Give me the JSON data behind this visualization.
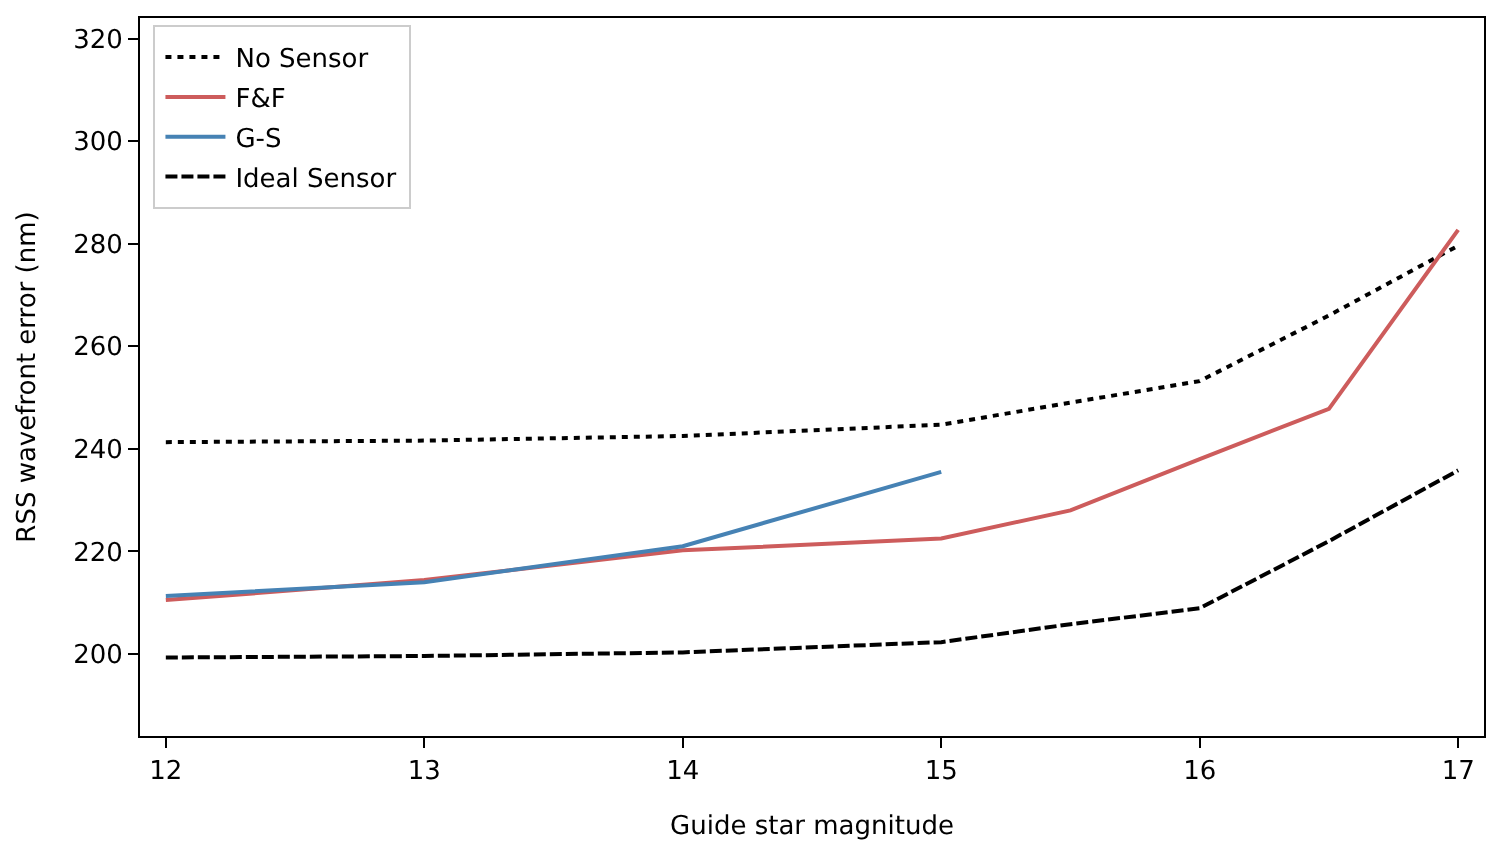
{
  "chart_data": {
    "type": "line",
    "xlabel": "Guide star magnitude",
    "ylabel": "RSS wavefront error (nm)",
    "xlim": [
      11.9,
      17.1
    ],
    "ylim": [
      184,
      324
    ],
    "xticks": [
      12,
      13,
      14,
      15,
      16,
      17
    ],
    "yticks": [
      200,
      220,
      240,
      260,
      280,
      300,
      320
    ],
    "legend": "top left",
    "marker": "none",
    "series": [
      {
        "name": "No Sensor",
        "color": "#000000",
        "line_style": "dotted",
        "x": [
          12,
          13,
          14,
          15,
          15.5,
          16,
          16.5,
          17
        ],
        "values": [
          241.3,
          241.6,
          242.5,
          244.7,
          249,
          253.2,
          266,
          279.6
        ]
      },
      {
        "name": "F&F",
        "color": "#cd5c5c",
        "line_style": "solid",
        "x": [
          12,
          13,
          14,
          15,
          15.5,
          16,
          16.5,
          17
        ],
        "values": [
          210.5,
          214.4,
          220.2,
          222.5,
          228,
          238,
          247.8,
          282.7
        ]
      },
      {
        "name": "G-S",
        "color": "#4682b4",
        "line_style": "solid",
        "x": [
          12,
          13,
          14,
          15
        ],
        "values": [
          211.3,
          214,
          221,
          235.5
        ]
      },
      {
        "name": "Ideal Sensor",
        "color": "#000000",
        "line_style": "dashed",
        "x": [
          12,
          13,
          14,
          15,
          15.5,
          16,
          16.5,
          17
        ],
        "values": [
          199.3,
          199.6,
          200.3,
          202.3,
          205.8,
          208.9,
          222,
          235.8
        ]
      }
    ]
  }
}
